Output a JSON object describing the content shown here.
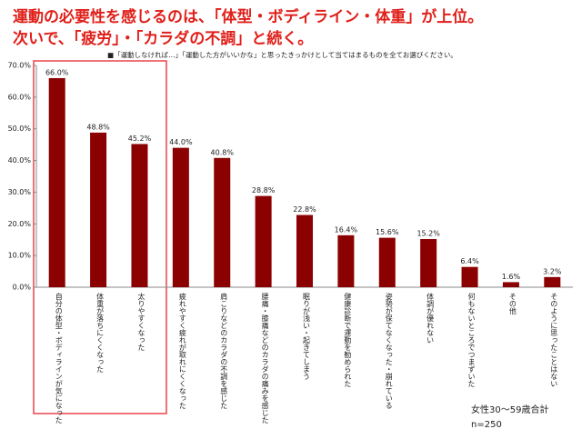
{
  "chart_data": {
    "type": "bar",
    "title": [
      "運動の必要性を感じるのは、「体型・ボディライン・体重」が上位。",
      "次いで、「疲労」・「カラダの不調」と続く。"
    ],
    "subtitle": "■「運動しなければ…」「運動した方がいいかな」と思ったきっかけとして当てはまるものを全てお選びください。",
    "categories": [
      "自分の体型・ボディラインが気になった",
      "体重が落ちにくくなった",
      "太りやすくなった",
      "疲れやすく疲れが取れにくくなった",
      "肩こりなどのカラダの不調を感じた",
      "腰痛・膝痛などのカラダの痛みを感じた",
      "眠りが浅い・起きてしまう",
      "健康診断で運動を勧められた",
      "姿勢が保てなくなった・崩れている",
      "体調が優れない",
      "何もないところでつまずいた",
      "その他",
      "そのように思ったことはない"
    ],
    "values": [
      66.0,
      48.8,
      45.2,
      44.0,
      40.8,
      28.8,
      22.8,
      16.4,
      15.6,
      15.2,
      6.4,
      1.6,
      3.2
    ],
    "value_labels": [
      "66.0%",
      "48.8%",
      "45.2%",
      "44.0%",
      "40.8%",
      "28.8%",
      "22.8%",
      "16.4%",
      "15.6%",
      "15.2%",
      "6.4%",
      "1.6%",
      "3.2%"
    ],
    "color": "#8b0000",
    "ylim": [
      0,
      70
    ],
    "yticks": [
      {
        "value": 0,
        "label": "0.0%"
      },
      {
        "value": 10,
        "label": "10.0%"
      },
      {
        "value": 20,
        "label": "20.0%"
      },
      {
        "value": 30,
        "label": "30.0%"
      },
      {
        "value": 40,
        "label": "40.0%"
      },
      {
        "value": 50,
        "label": "50.0%"
      },
      {
        "value": 60,
        "label": "60.0%"
      },
      {
        "value": 70,
        "label": "70.0%"
      }
    ],
    "note": [
      "女性30～59歳合計",
      "n=250"
    ]
  }
}
